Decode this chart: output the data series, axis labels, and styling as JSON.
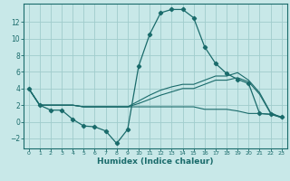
{
  "bg_color": "#c8e8e8",
  "grid_color": "#a0cccc",
  "line_color": "#1a6b6b",
  "xlabel": "Humidex (Indice chaleur)",
  "xlim": [
    -0.5,
    23.5
  ],
  "ylim": [
    -3.2,
    14.2
  ],
  "yticks": [
    -2,
    0,
    2,
    4,
    6,
    8,
    10,
    12
  ],
  "xticks": [
    0,
    1,
    2,
    3,
    4,
    5,
    6,
    7,
    8,
    9,
    10,
    11,
    12,
    13,
    14,
    15,
    16,
    17,
    18,
    19,
    20,
    21,
    22,
    23
  ],
  "series": [
    {
      "x": [
        0,
        1,
        2,
        3,
        4,
        5,
        6,
        7,
        8,
        9,
        10,
        11,
        12,
        13,
        14,
        15,
        16,
        17,
        18,
        19,
        20,
        21,
        22,
        23
      ],
      "y": [
        4,
        2,
        1.4,
        1.4,
        0.3,
        -0.5,
        -0.6,
        -1.1,
        -2.6,
        -0.9,
        6.7,
        10.5,
        13.1,
        13.5,
        13.5,
        12.5,
        9.0,
        7.0,
        5.8,
        5.1,
        4.6,
        1.0,
        0.9,
        0.6
      ],
      "marker": true
    },
    {
      "x": [
        0,
        1,
        2,
        3,
        4,
        5,
        6,
        7,
        8,
        9,
        10,
        11,
        12,
        13,
        14,
        15,
        16,
        17,
        18,
        19,
        20,
        21,
        22,
        23
      ],
      "y": [
        4,
        2,
        2,
        2,
        2,
        1.8,
        1.8,
        1.8,
        1.8,
        1.8,
        2.5,
        3.2,
        3.8,
        4.2,
        4.5,
        4.5,
        5.0,
        5.5,
        5.5,
        5.9,
        5.0,
        3.5,
        1.1,
        0.5
      ],
      "marker": false
    },
    {
      "x": [
        0,
        1,
        2,
        3,
        4,
        5,
        6,
        7,
        8,
        9,
        10,
        11,
        12,
        13,
        14,
        15,
        16,
        17,
        18,
        19,
        20,
        21,
        22,
        23
      ],
      "y": [
        4,
        2,
        2,
        2,
        2,
        1.8,
        1.8,
        1.8,
        1.8,
        1.8,
        2.2,
        2.7,
        3.2,
        3.6,
        4.0,
        4.0,
        4.5,
        5.0,
        5.0,
        5.3,
        4.8,
        3.3,
        1.0,
        0.5
      ],
      "marker": false
    },
    {
      "x": [
        0,
        1,
        2,
        3,
        4,
        5,
        6,
        7,
        8,
        9,
        10,
        11,
        12,
        13,
        14,
        15,
        16,
        17,
        18,
        19,
        20,
        21,
        22,
        23
      ],
      "y": [
        4,
        2,
        2,
        2,
        2,
        1.8,
        1.8,
        1.8,
        1.8,
        1.8,
        1.8,
        1.8,
        1.8,
        1.8,
        1.8,
        1.8,
        1.5,
        1.5,
        1.5,
        1.3,
        1.0,
        1.0,
        0.9,
        0.5
      ],
      "marker": false
    }
  ]
}
